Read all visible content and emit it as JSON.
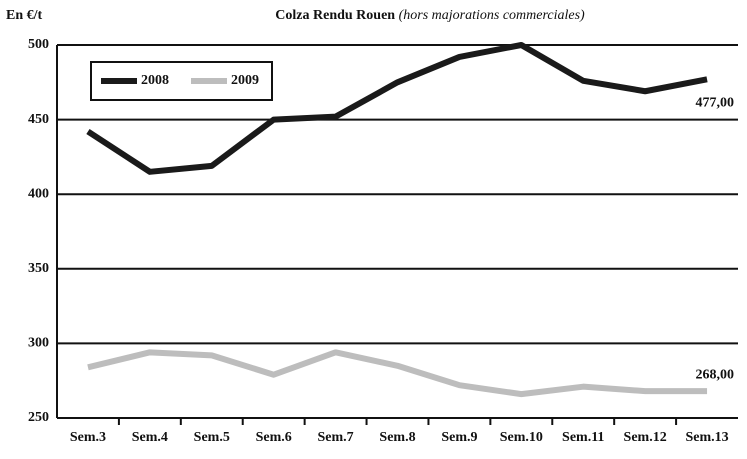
{
  "chart_data": {
    "type": "line",
    "title": "Colza Rendu Rouen",
    "subtitle": "(hors majorations commerciales)",
    "y_label": "En €/t",
    "categories": [
      "Sem.3",
      "Sem.4",
      "Sem.5",
      "Sem.6",
      "Sem.7",
      "Sem.8",
      "Sem.9",
      "Sem.10",
      "Sem.11",
      "Sem.12",
      "Sem.13"
    ],
    "series": [
      {
        "name": "2008",
        "color": "#1a1a1a",
        "values": [
          442,
          415,
          419,
          450,
          452,
          475,
          492,
          500,
          476,
          469,
          477
        ],
        "value_labels": [
          null,
          null,
          null,
          null,
          null,
          null,
          null,
          null,
          null,
          null,
          "477,00"
        ]
      },
      {
        "name": "2009",
        "color": "#bdbdbd",
        "values": [
          284,
          294,
          292,
          279,
          294,
          285,
          272,
          266,
          271,
          268,
          268
        ],
        "value_labels": [
          null,
          null,
          null,
          null,
          null,
          null,
          null,
          null,
          null,
          null,
          "268,00"
        ]
      }
    ],
    "ylim": [
      250,
      500
    ],
    "yticks": [
      250,
      300,
      350,
      400,
      450,
      500
    ],
    "grid": true,
    "legend": "top-left"
  }
}
